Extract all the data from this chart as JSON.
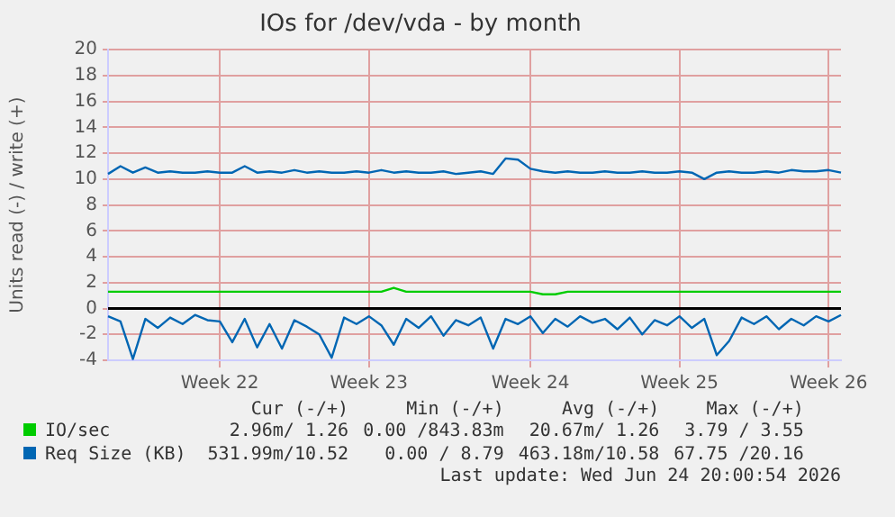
{
  "chart_data": {
    "type": "line",
    "title": "IOs for /dev/vda - by month",
    "ylabel": "Units read (-) / write (+)",
    "categories": [
      null,
      null,
      null,
      null,
      null,
      null,
      null,
      null,
      null,
      "Week 22",
      null,
      null,
      null,
      null,
      null,
      null,
      null,
      null,
      null,
      null,
      null,
      "Week 23",
      null,
      null,
      null,
      null,
      null,
      null,
      null,
      null,
      null,
      null,
      null,
      null,
      "Week 24",
      null,
      null,
      null,
      null,
      null,
      null,
      null,
      null,
      null,
      null,
      null,
      "Week 25",
      null,
      null,
      null,
      null,
      null,
      null,
      null,
      null,
      null,
      null,
      null,
      "Week 26",
      null
    ],
    "series": [
      {
        "name": "IO/sec",
        "color": "#00cc00",
        "values": [
          1.3,
          1.3,
          1.3,
          1.3,
          1.3,
          1.3,
          1.3,
          1.3,
          1.3,
          1.3,
          1.3,
          1.3,
          1.3,
          1.3,
          1.3,
          1.3,
          1.3,
          1.3,
          1.3,
          1.3,
          1.3,
          1.3,
          1.3,
          1.6,
          1.3,
          1.3,
          1.3,
          1.3,
          1.3,
          1.3,
          1.3,
          1.3,
          1.3,
          1.3,
          1.3,
          1.1,
          1.1,
          1.3,
          1.3,
          1.3,
          1.3,
          1.3,
          1.3,
          1.3,
          1.3,
          1.3,
          1.3,
          1.3,
          1.3,
          1.3,
          1.3,
          1.3,
          1.3,
          1.3,
          1.3,
          1.3,
          1.3,
          1.3,
          1.3,
          1.3
        ]
      },
      {
        "name": "Req Size (KB)",
        "color": "#0066b3",
        "values": [
          10.4,
          11.0,
          10.5,
          10.9,
          10.5,
          10.6,
          10.5,
          10.5,
          10.6,
          10.5,
          10.5,
          11.0,
          10.5,
          10.6,
          10.5,
          10.7,
          10.5,
          10.6,
          10.5,
          10.5,
          10.6,
          10.5,
          10.7,
          10.5,
          10.6,
          10.5,
          10.5,
          10.6,
          10.4,
          10.5,
          10.6,
          10.4,
          11.6,
          11.5,
          10.8,
          10.6,
          10.5,
          10.6,
          10.5,
          10.5,
          10.6,
          10.5,
          10.5,
          10.6,
          10.5,
          10.5,
          10.6,
          10.5,
          10.0,
          10.5,
          10.6,
          10.5,
          10.5,
          10.6,
          10.5,
          10.7,
          10.6,
          10.6,
          10.7,
          10.5
        ]
      },
      {
        "color": "#0066b3",
        "values": [
          -0.6,
          -1.0,
          -3.9,
          -0.8,
          -1.5,
          -0.7,
          -1.2,
          -0.5,
          -0.9,
          -1.0,
          -2.6,
          -0.8,
          -3.0,
          -1.2,
          -3.1,
          -0.9,
          -1.4,
          -2.0,
          -3.8,
          -0.7,
          -1.2,
          -0.6,
          -1.3,
          -2.8,
          -0.8,
          -1.5,
          -0.6,
          -2.1,
          -0.9,
          -1.3,
          -0.7,
          -3.1,
          -0.8,
          -1.2,
          -0.6,
          -1.9,
          -0.8,
          -1.4,
          -0.6,
          -1.1,
          -0.8,
          -1.6,
          -0.7,
          -2.0,
          -0.9,
          -1.3,
          -0.6,
          -1.5,
          -0.8,
          -3.6,
          -2.5,
          -0.7,
          -1.2,
          -0.6,
          -1.6,
          -0.8,
          -1.3,
          -0.6,
          -1.0,
          -0.5
        ]
      }
    ],
    "ylim": [
      -4,
      20
    ],
    "yticks": [
      -4,
      -2,
      0,
      2,
      4,
      6,
      8,
      10,
      12,
      14,
      16,
      18,
      20
    ],
    "grid": true,
    "legend": "bottom",
    "marker": "none",
    "line_style": "solid",
    "ref_lines": [
      {
        "axis": "y",
        "value": 0,
        "color": "#000000"
      }
    ],
    "annotations": [
      "Cur (-/+)",
      "Min (-/+)",
      "Avg (-/+)",
      "Max (-/+)",
      "2.96m/ 1.26",
      "0.00 /843.83m",
      "20.67m/ 1.26",
      "3.79 / 3.55",
      "531.99m/10.52",
      "0.00 / 8.79",
      "463.18m/10.58",
      "67.75 /20.16",
      "Last update: Wed Jun 24 20:00:54 2026"
    ]
  }
}
